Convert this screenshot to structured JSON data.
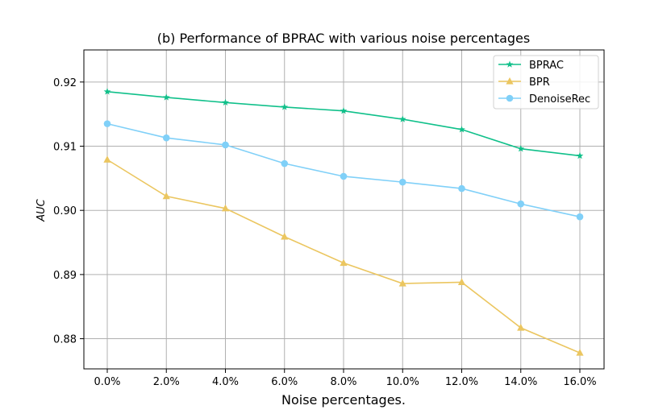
{
  "chart_data": {
    "type": "line",
    "title": "(b) Performance of BPRAC with various noise percentages",
    "xlabel": "Noise percentages.",
    "ylabel": "AUC",
    "categories": [
      "0.0%",
      "2.0%",
      "4.0%",
      "6.0%",
      "8.0%",
      "10.0%",
      "12.0%",
      "14.0%",
      "16.0%"
    ],
    "yticks": [
      "0.88",
      "0.89",
      "0.90",
      "0.91",
      "0.92"
    ],
    "ylim": [
      0.8753,
      0.925
    ],
    "grid": true,
    "legend_position": "top-right",
    "series": [
      {
        "name": "BPRAC",
        "color": "#10c08a",
        "marker": "star",
        "values": [
          0.9185,
          0.9176,
          0.9168,
          0.9161,
          0.9155,
          0.9142,
          0.9126,
          0.9096,
          0.9085
        ]
      },
      {
        "name": "BPR",
        "color": "#ebc660",
        "marker": "triangle",
        "values": [
          0.9079,
          0.9022,
          0.9003,
          0.8959,
          0.8918,
          0.8886,
          0.8888,
          0.8817,
          0.8778
        ]
      },
      {
        "name": "DenoiseRec",
        "color": "#80d0f8",
        "marker": "circle",
        "values": [
          0.9135,
          0.9113,
          0.9102,
          0.9073,
          0.9053,
          0.9044,
          0.9034,
          0.901,
          0.899
        ]
      }
    ]
  }
}
